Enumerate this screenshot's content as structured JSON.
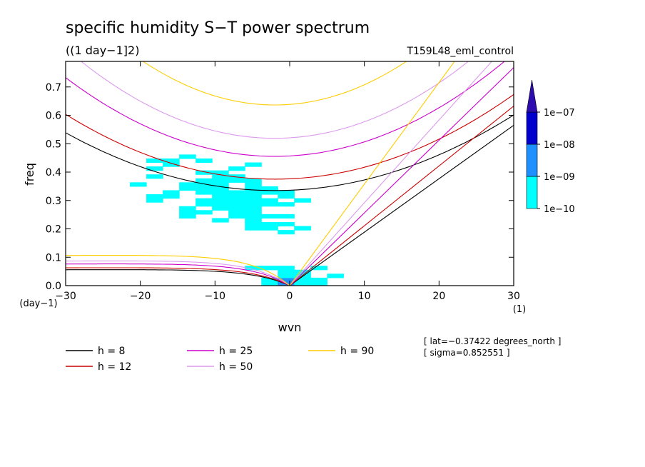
{
  "chart_data": {
    "type": "heatmap",
    "title": "specific humidity S−T power spectrum",
    "subtitle": "((1 day−1]2)",
    "run_label": "T159L48_eml_control",
    "xlabel": "wvn",
    "ylabel": "freq",
    "x_unit": "(1)",
    "y_unit": "(day−1)",
    "xlim": [
      -30,
      30
    ],
    "ylim": [
      0,
      0.79
    ],
    "x_ticks": [
      -30,
      -20,
      -10,
      0,
      10,
      20,
      30
    ],
    "x_tick_labels": [
      "−30",
      "−20",
      "−10",
      "0",
      "10",
      "20",
      "30"
    ],
    "y_ticks": [
      0.0,
      0.1,
      0.2,
      0.3,
      0.4,
      0.5,
      0.6,
      0.7
    ],
    "y_tick_labels": [
      "0.0",
      "0.1",
      "0.2",
      "0.3",
      "0.4",
      "0.5",
      "0.6",
      "0.7"
    ],
    "colorbar": {
      "levels": [
        "1e−10",
        "1e−09",
        "1e−08",
        "1e−07"
      ],
      "colors": [
        "#00ffff",
        "#1e90ff",
        "#0000cd",
        "#2e0cb0"
      ]
    },
    "dispersion_curves": [
      {
        "name": "h =  8",
        "color": "#000000"
      },
      {
        "name": "h = 12",
        "color": "#cc0000"
      },
      {
        "name": "h = 25",
        "color": "#cc00cc"
      },
      {
        "name": "h = 50",
        "color": "#dd99ee"
      },
      {
        "name": "h = 90",
        "color": "#ffcc00"
      }
    ],
    "annotations": {
      "lat": "[ lat=−0.37422 degrees_north ]",
      "sigma": "[ sigma=0.852551 ]"
    }
  }
}
